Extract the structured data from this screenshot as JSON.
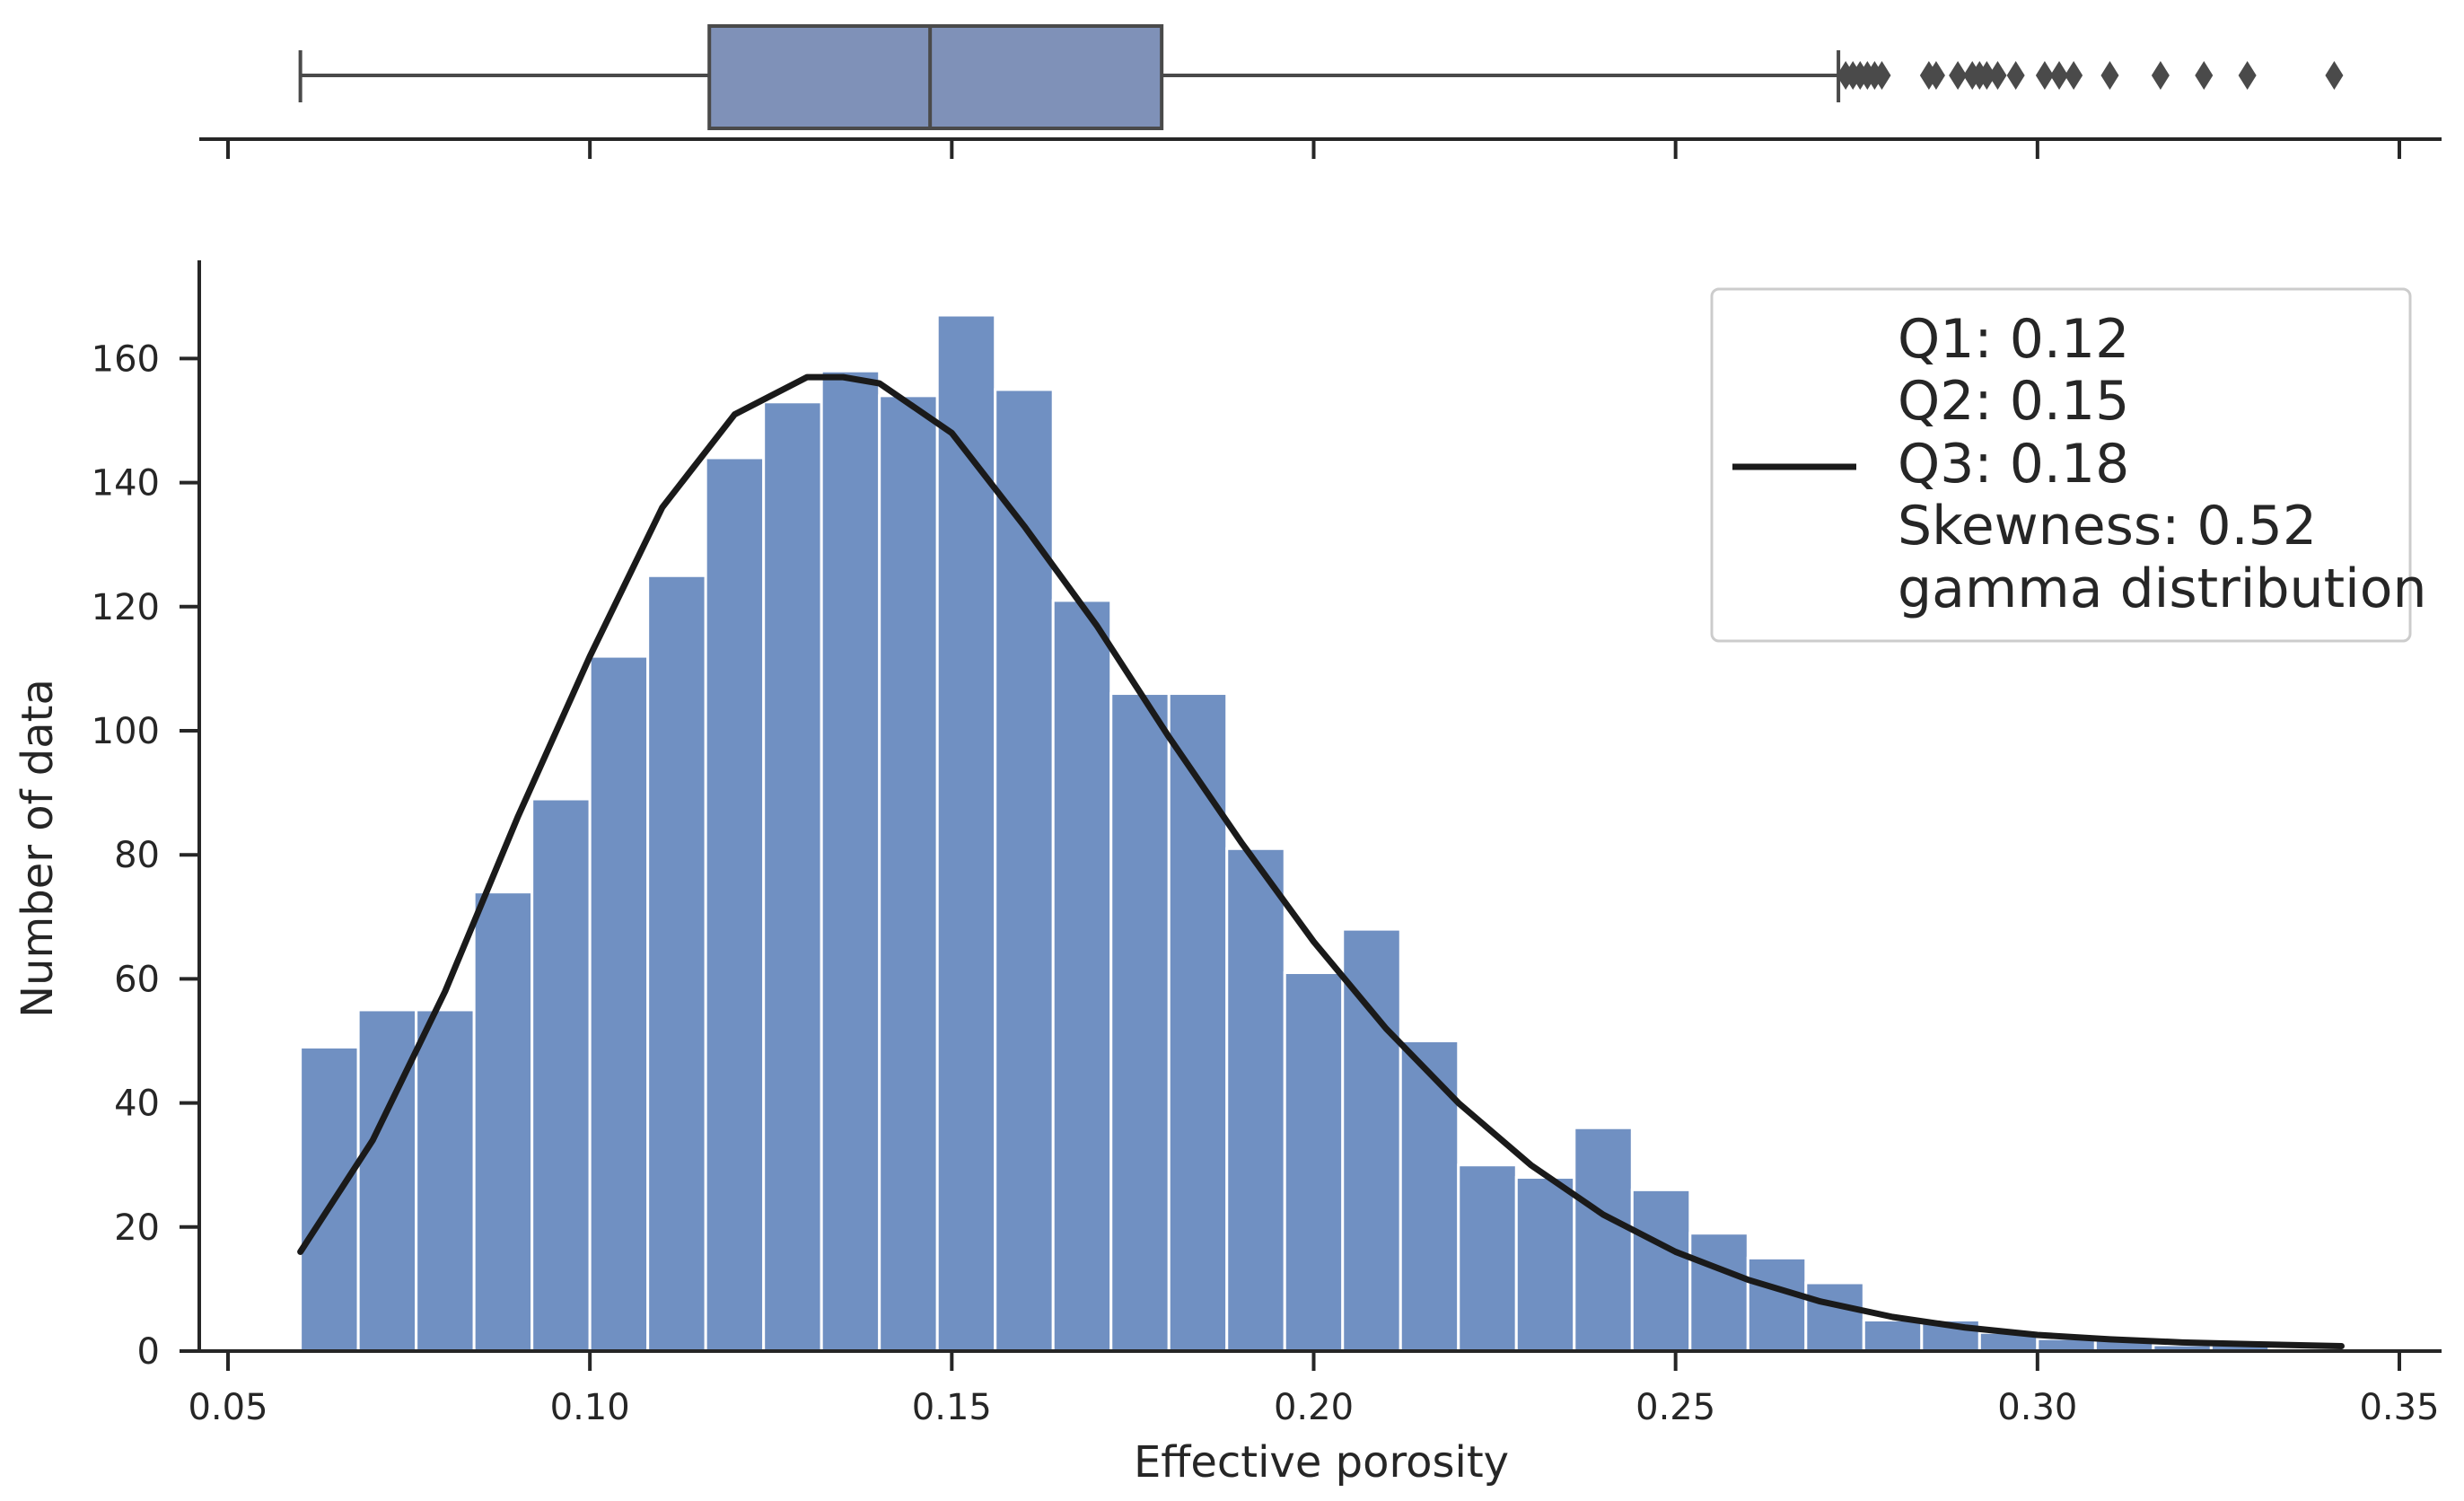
{
  "chart_data": {
    "type": "bar",
    "subtype": "histogram_with_boxplot",
    "xlabel": "Effective porosity",
    "ylabel": "Number of data",
    "xlim": [
      0.05,
      0.35
    ],
    "ylim": [
      0,
      175
    ],
    "xticks": [
      0.05,
      0.1,
      0.15,
      0.2,
      0.25,
      0.3,
      0.35
    ],
    "xtick_labels": [
      "0.05",
      "0.10",
      "0.15",
      "0.20",
      "0.25",
      "0.30",
      "0.35"
    ],
    "yticks": [
      0,
      20,
      40,
      60,
      80,
      100,
      120,
      140,
      160
    ],
    "ytick_labels": [
      "0",
      "20",
      "40",
      "60",
      "80",
      "100",
      "120",
      "140",
      "160"
    ],
    "histogram": {
      "bin_start": 0.06,
      "bin_width": 0.008,
      "counts": [
        49,
        55,
        55,
        74,
        89,
        112,
        125,
        144,
        153,
        158,
        154,
        167,
        155,
        121,
        106,
        106,
        81,
        61,
        68,
        50,
        30,
        28,
        36,
        26,
        19,
        15,
        11,
        5,
        5,
        3,
        2,
        2,
        1,
        1,
        0.5
      ],
      "color": "#7090c2"
    },
    "fit_curve": {
      "name": "gamma distribution",
      "color": "#1a1a1a",
      "x": [
        0.06,
        0.07,
        0.08,
        0.09,
        0.1,
        0.11,
        0.12,
        0.13,
        0.135,
        0.14,
        0.15,
        0.16,
        0.17,
        0.18,
        0.19,
        0.2,
        0.21,
        0.22,
        0.23,
        0.24,
        0.25,
        0.26,
        0.27,
        0.28,
        0.29,
        0.3,
        0.31,
        0.32,
        0.33,
        0.342
      ],
      "y": [
        16,
        34,
        58,
        86,
        112,
        136,
        151,
        157,
        157,
        156,
        148,
        133,
        117,
        99,
        82,
        66,
        52,
        40,
        30,
        22,
        16,
        11.5,
        8,
        5.5,
        3.8,
        2.6,
        1.9,
        1.4,
        1.1,
        0.8
      ]
    },
    "boxplot": {
      "whisker_low": 0.06,
      "q1": 0.1165,
      "median": 0.147,
      "q3": 0.179,
      "whisker_high": 0.2725,
      "outliers": [
        0.2735,
        0.2745,
        0.2755,
        0.2765,
        0.2775,
        0.2785,
        0.285,
        0.286,
        0.289,
        0.291,
        0.292,
        0.293,
        0.2945,
        0.297,
        0.301,
        0.303,
        0.305,
        0.31,
        0.317,
        0.323,
        0.329,
        0.341
      ],
      "color": "#7f91b8",
      "line_color": "#4a4a4a"
    },
    "legend": {
      "position": "top-right",
      "lines": [
        "Q1: 0.12",
        "Q2: 0.15",
        "Q3: 0.18",
        "Skewness: 0.52",
        "gamma distribution"
      ]
    }
  }
}
